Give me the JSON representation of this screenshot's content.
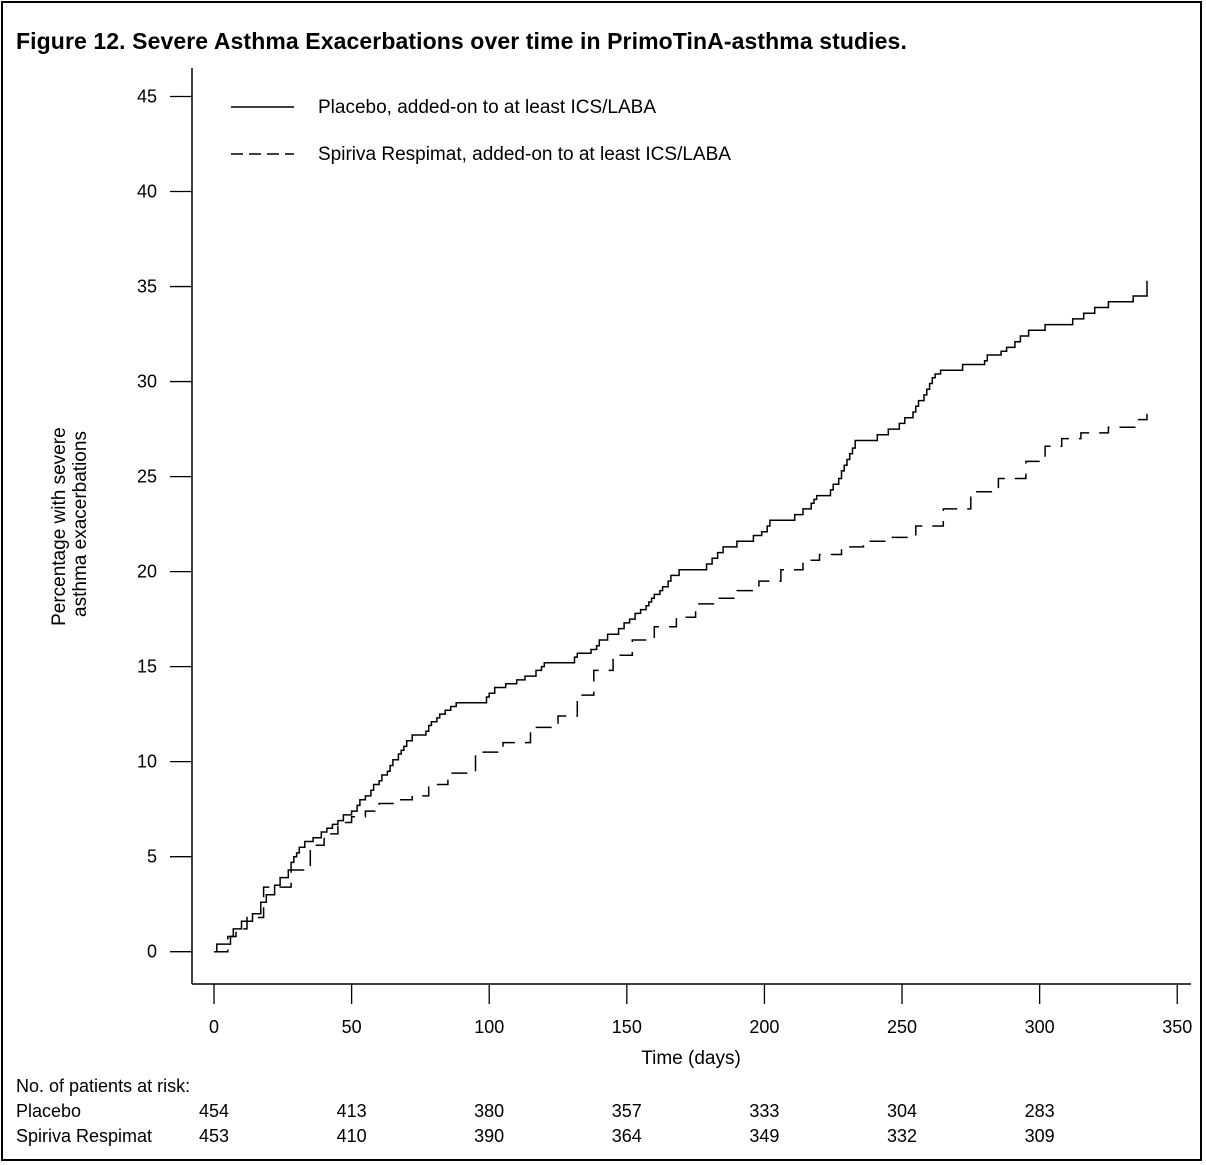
{
  "figure": {
    "title": "Figure 12. Severe Asthma Exacerbations over time in PrimoTinA-asthma studies."
  },
  "chart_data": {
    "type": "line",
    "title": "Figure 12. Severe Asthma Exacerbations over time in PrimoTinA-asthma studies.",
    "xlabel": "Time (days)",
    "ylabel": "Percentage with severe asthma exacerbations",
    "ylabel_lines": [
      "Percentage with severe",
      "asthma exacerbations"
    ],
    "xlim": [
      -8,
      355
    ],
    "ylim": [
      -1.7,
      46.5
    ],
    "x_ticks": [
      0,
      50,
      100,
      150,
      200,
      250,
      300,
      350
    ],
    "y_ticks": [
      0,
      5,
      10,
      15,
      20,
      25,
      30,
      35,
      40,
      45
    ],
    "grid": false,
    "legend_position": "top-left",
    "series": [
      {
        "name": "Placebo, added-on to at least ICS/LABA",
        "line_style": "solid",
        "x": [
          0,
          1,
          6,
          7,
          10,
          14,
          17,
          19,
          22,
          24,
          27,
          28,
          29,
          30,
          31,
          33,
          36,
          39,
          41,
          43,
          45,
          47,
          50,
          52,
          53,
          55,
          57,
          58,
          60,
          61,
          63,
          64,
          65,
          67,
          68,
          69,
          70,
          72,
          77,
          78,
          79,
          81,
          82,
          84,
          86,
          88,
          99,
          100,
          102,
          106,
          110,
          113,
          117,
          119,
          120,
          131,
          132,
          137,
          139,
          140,
          143,
          147,
          149,
          151,
          153,
          155,
          157,
          158,
          159,
          160,
          162,
          163,
          165,
          166,
          169,
          179,
          181,
          183,
          185,
          190,
          196,
          199,
          201,
          202,
          211,
          214,
          217,
          218,
          219,
          224,
          225,
          227,
          228,
          229,
          230,
          231,
          232,
          233,
          241,
          245,
          249,
          251,
          254,
          255,
          256,
          258,
          259,
          260,
          261,
          262,
          264,
          272,
          280,
          281,
          286,
          288,
          291,
          293,
          296,
          302,
          312,
          316,
          320,
          325,
          334,
          339
        ],
        "y": [
          0,
          0.4,
          0.8,
          1.2,
          1.6,
          2.0,
          2.6,
          3.0,
          3.5,
          3.9,
          4.3,
          4.7,
          5.0,
          5.2,
          5.5,
          5.8,
          6.0,
          6.3,
          6.5,
          6.7,
          6.9,
          7.2,
          7.4,
          7.7,
          8.0,
          8.2,
          8.5,
          8.8,
          9.0,
          9.3,
          9.5,
          9.8,
          10.1,
          10.4,
          10.6,
          10.8,
          11.1,
          11.4,
          11.6,
          11.9,
          12.1,
          12.3,
          12.5,
          12.7,
          12.9,
          13.1,
          13.4,
          13.6,
          13.9,
          14.1,
          14.3,
          14.5,
          14.8,
          15.0,
          15.2,
          15.5,
          15.7,
          15.9,
          16.1,
          16.4,
          16.7,
          17.0,
          17.3,
          17.5,
          17.8,
          18.0,
          18.2,
          18.4,
          18.6,
          18.8,
          19.0,
          19.2,
          19.5,
          19.8,
          20.1,
          20.4,
          20.7,
          21.0,
          21.3,
          21.6,
          21.9,
          22.1,
          22.4,
          22.7,
          23.0,
          23.3,
          23.6,
          23.8,
          24.0,
          24.3,
          24.6,
          24.9,
          25.3,
          25.6,
          25.9,
          26.2,
          26.5,
          26.9,
          27.2,
          27.5,
          27.8,
          28.1,
          28.4,
          28.7,
          29.0,
          29.3,
          29.6,
          29.9,
          30.2,
          30.4,
          30.6,
          30.9,
          31.1,
          31.4,
          31.6,
          31.8,
          32.1,
          32.4,
          32.7,
          33.0,
          33.3,
          33.6,
          33.9,
          34.2,
          34.5,
          35.3
        ]
      },
      {
        "name": "Spiriva Respimat, added-on to at least ICS/LABA",
        "line_style": "dashed",
        "x": [
          0,
          5,
          8,
          12,
          18,
          28,
          35,
          40,
          45,
          50,
          55,
          60,
          66,
          72,
          78,
          85,
          95,
          105,
          115,
          125,
          132,
          138,
          145,
          152,
          160,
          168,
          175,
          183,
          190,
          198,
          206,
          214,
          220,
          228,
          236,
          245,
          255,
          265,
          275,
          285,
          295,
          302,
          308,
          315,
          325,
          335,
          339
        ],
        "y": [
          0,
          0.8,
          1.2,
          1.8,
          3.4,
          4.3,
          5.6,
          6.2,
          6.8,
          7.1,
          7.4,
          7.8,
          8.0,
          8.2,
          8.8,
          9.4,
          10.5,
          11.0,
          11.8,
          12.4,
          13.5,
          14.8,
          15.6,
          16.4,
          17.1,
          17.6,
          18.3,
          18.6,
          19.0,
          19.5,
          20.1,
          20.6,
          20.9,
          21.3,
          21.6,
          21.8,
          22.4,
          23.3,
          24.2,
          24.9,
          25.8,
          26.6,
          27.0,
          27.3,
          27.6,
          28.0,
          28.3
        ]
      }
    ]
  },
  "risk_table": {
    "heading": "No. of patients at risk:",
    "times": [
      0,
      50,
      100,
      150,
      200,
      250,
      300
    ],
    "rows": [
      {
        "label": "Placebo",
        "values": [
          "454",
          "413",
          "380",
          "357",
          "333",
          "304",
          "283"
        ]
      },
      {
        "label": "Spiriva Respimat",
        "values": [
          "453",
          "410",
          "390",
          "364",
          "349",
          "332",
          "309"
        ]
      }
    ]
  }
}
